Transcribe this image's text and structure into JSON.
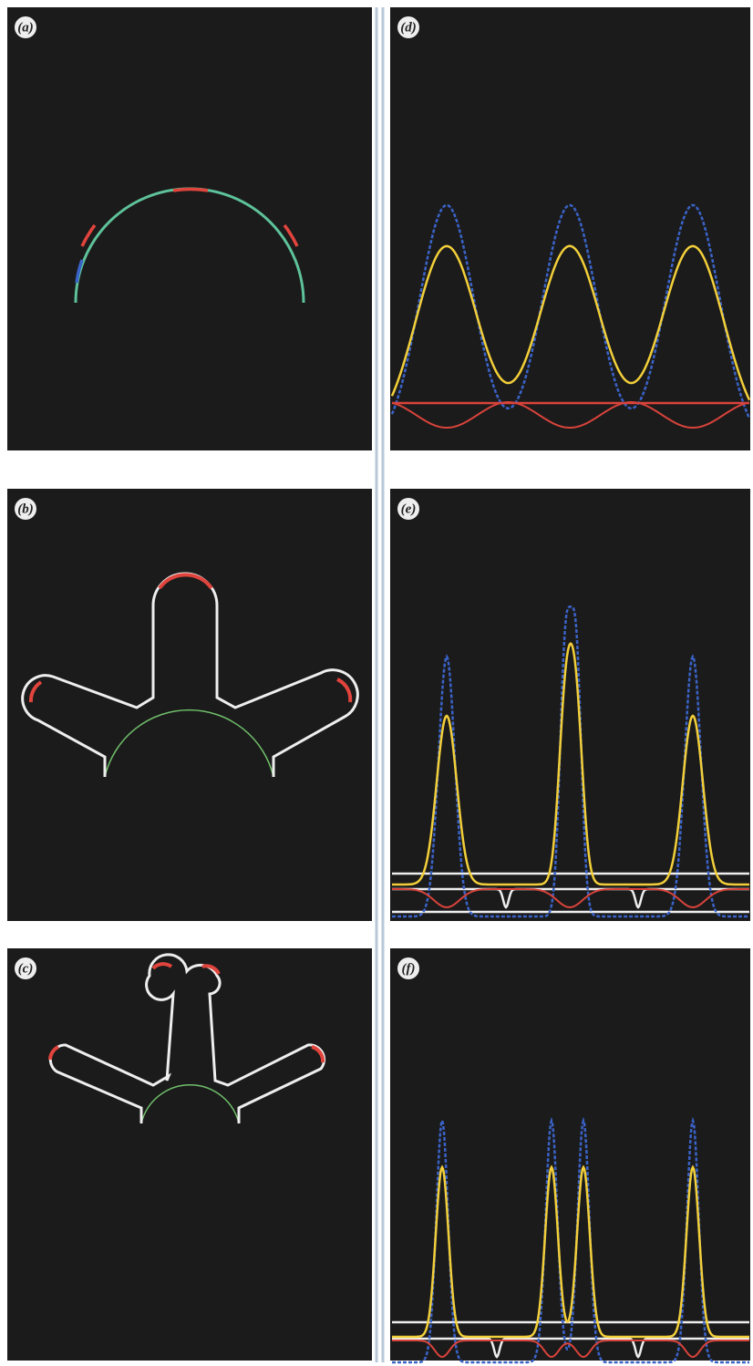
{
  "panels": [
    {
      "label": "(a)"
    },
    {
      "label": "(d)"
    },
    {
      "label": "(b)"
    },
    {
      "label": "(e)"
    },
    {
      "label": "(c)"
    },
    {
      "label": "(f)"
    }
  ]
}
